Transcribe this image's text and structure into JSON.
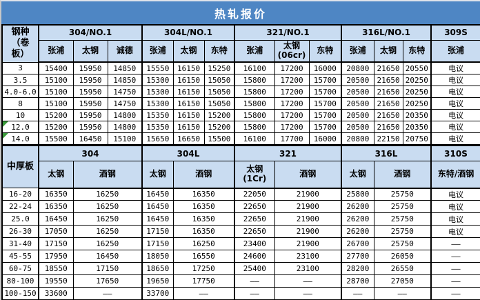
{
  "title": "热轧报价",
  "colors": {
    "title_bg": "#4e86c4",
    "header_bg": "#c9dcf1",
    "grid_border": "#000000",
    "comment_marker_green": "#3a9a3a"
  },
  "sections": [
    {
      "id": "hot-rolled-coil",
      "corner": "钢种（卷板）",
      "groups": [
        {
          "label": "304/NO.1",
          "span": 3
        },
        {
          "label": "304L/NO.1",
          "span": 3
        },
        {
          "label": "321/NO.1",
          "span": 3
        },
        {
          "label": "316L/NO.1",
          "span": 3
        },
        {
          "label": "309S",
          "span": 1
        }
      ],
      "vendors": [
        "张浦",
        "太钢",
        "诚德",
        "张浦",
        "太钢",
        "东特",
        "张浦",
        "太钢\n(06cr)",
        "东特",
        "张浦",
        "太钢",
        "东特",
        "张浦"
      ],
      "rows": [
        {
          "spec": "3",
          "comment": false,
          "values": [
            "15400",
            "15950",
            "14850",
            "15550",
            "16150",
            "15250",
            "16100",
            "17200",
            "16000",
            "20800",
            "21650",
            "20550",
            "电议"
          ]
        },
        {
          "spec": "3.5",
          "comment": false,
          "values": [
            "15100",
            "15950",
            "14850",
            "15300",
            "16150",
            "15050",
            "15800",
            "17200",
            "15700",
            "20500",
            "21650",
            "20250",
            "电议"
          ]
        },
        {
          "spec": "4.0-6.0",
          "comment": false,
          "values": [
            "15100",
            "15950",
            "14750",
            "15300",
            "16150",
            "15050",
            "15800",
            "17200",
            "15700",
            "20500",
            "21650",
            "20250",
            "电议"
          ]
        },
        {
          "spec": "8",
          "comment": false,
          "values": [
            "15100",
            "15950",
            "14750",
            "15300",
            "16150",
            "15050",
            "15800",
            "17200",
            "15700",
            "20500",
            "21650",
            "20250",
            "电议"
          ]
        },
        {
          "spec": "10",
          "comment": false,
          "values": [
            "15200",
            "15950",
            "14800",
            "15350",
            "16150",
            "15200",
            "15800",
            "17200",
            "15700",
            "20500",
            "21650",
            "20350",
            "电议"
          ]
        },
        {
          "spec": "12.0",
          "comment": true,
          "values": [
            "15200",
            "15950",
            "14800",
            "15350",
            "16150",
            "15200",
            "15800",
            "17200",
            "15700",
            "20500",
            "21650",
            "20350",
            "电议"
          ]
        },
        {
          "spec": "14.0",
          "comment": true,
          "values": [
            "15500",
            "16450",
            "15100",
            "15650",
            "16650",
            "15500",
            "16100",
            "17700",
            "16000",
            "20800",
            "22150",
            "20750",
            "电议"
          ]
        }
      ]
    },
    {
      "id": "medium-plate",
      "corner": "中厚板",
      "groups": [
        {
          "label": "304",
          "span": 2
        },
        {
          "label": "304L",
          "span": 2
        },
        {
          "label": "321",
          "span": 2
        },
        {
          "label": "316L",
          "span": 2
        },
        {
          "label": "310S",
          "span": 1
        }
      ],
      "vendors": [
        "太钢",
        "酒钢",
        "太钢",
        "酒钢",
        "太钢\n(1Cr)",
        "酒钢",
        "太钢",
        "酒钢",
        "东特/酒钢"
      ],
      "rows": [
        {
          "spec": "16-20",
          "comment": false,
          "values": [
            "16350",
            "16250",
            "16450",
            "16350",
            "22050",
            "21900",
            "25800",
            "25750",
            "电议"
          ]
        },
        {
          "spec": "22-24",
          "comment": false,
          "values": [
            "16350",
            "16250",
            "16450",
            "16350",
            "22650",
            "21900",
            "26200",
            "25750",
            "电议"
          ]
        },
        {
          "spec": "25.0",
          "comment": false,
          "values": [
            "16450",
            "16250",
            "16450",
            "16350",
            "22650",
            "21900",
            "26200",
            "25750",
            "电议"
          ]
        },
        {
          "spec": "26-30",
          "comment": false,
          "values": [
            "17050",
            "16250",
            "17150",
            "16350",
            "22650",
            "21900",
            "26200",
            "25750",
            "电议"
          ]
        },
        {
          "spec": "31-40",
          "comment": false,
          "values": [
            "17150",
            "16250",
            "17150",
            "16250",
            "23400",
            "21900",
            "26700",
            "25750",
            "——"
          ]
        },
        {
          "spec": "45-55",
          "comment": false,
          "values": [
            "17950",
            "16450",
            "18050",
            "16550",
            "24600",
            "23100",
            "27700",
            "26050",
            "——"
          ]
        },
        {
          "spec": "60-75",
          "comment": false,
          "values": [
            "18550",
            "17150",
            "18650",
            "17250",
            "25400",
            "23100",
            "28200",
            "26550",
            "——"
          ]
        },
        {
          "spec": "80-100",
          "comment": false,
          "values": [
            "19550",
            "17650",
            "19650",
            "17750",
            "——",
            "——",
            "28700",
            "27050",
            "——"
          ]
        },
        {
          "spec": "100-150",
          "comment": false,
          "values": [
            "33600",
            "——",
            "33700",
            "——",
            "——",
            "——",
            "——",
            "——",
            "——"
          ]
        }
      ]
    }
  ]
}
